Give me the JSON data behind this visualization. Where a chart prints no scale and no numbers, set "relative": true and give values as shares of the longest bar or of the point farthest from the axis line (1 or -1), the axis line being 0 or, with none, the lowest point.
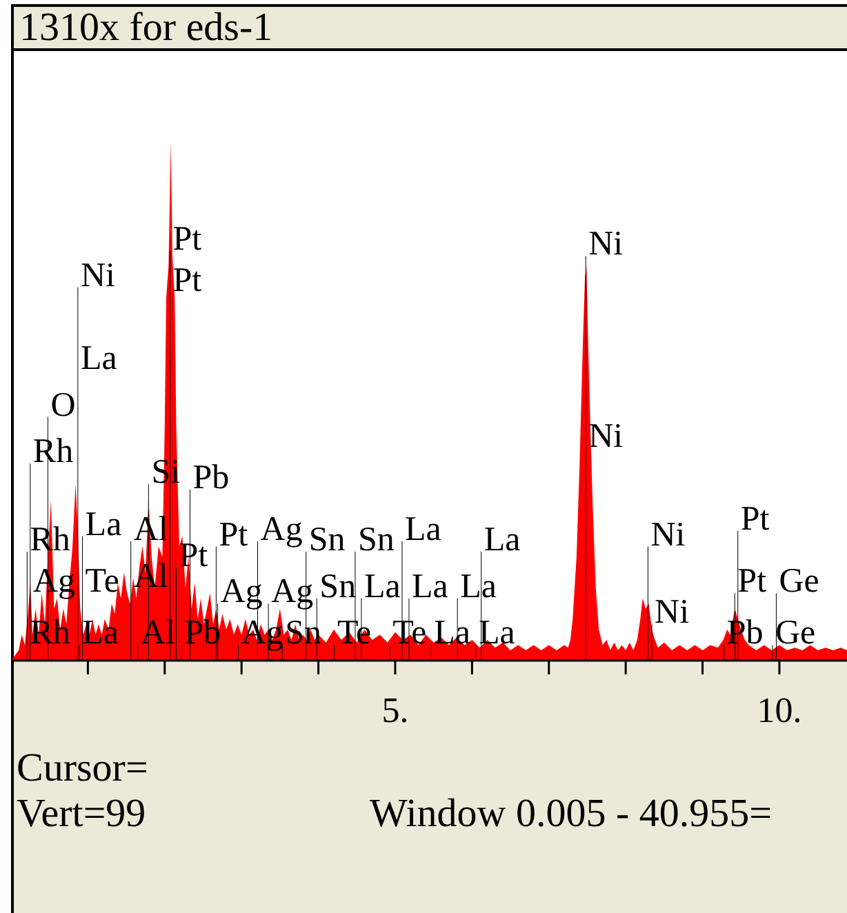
{
  "chart_data": {
    "type": "area",
    "title": "1310x for eds-1",
    "relative": true,
    "x": [
      0,
      0.05,
      0.1,
      0.14,
      0.18,
      0.22,
      0.25,
      0.28,
      0.32,
      0.36,
      0.4,
      0.44,
      0.48,
      0.52,
      0.56,
      0.6,
      0.64,
      0.68,
      0.72,
      0.76,
      0.8,
      0.84,
      0.87,
      0.9,
      0.94,
      0.98,
      1.02,
      1.06,
      1.1,
      1.14,
      1.18,
      1.22,
      1.27,
      1.31,
      1.35,
      1.39,
      1.43,
      1.47,
      1.51,
      1.55,
      1.59,
      1.63,
      1.67,
      1.71,
      1.75,
      1.79,
      1.83,
      1.87,
      1.92,
      1.97,
      2.0,
      2.02,
      2.05,
      2.08,
      2.1,
      2.13,
      2.15,
      2.19,
      2.23,
      2.27,
      2.31,
      2.35,
      2.39,
      2.43,
      2.47,
      2.51,
      2.55,
      2.59,
      2.63,
      2.67,
      2.71,
      2.75,
      2.8,
      2.85,
      2.9,
      2.95,
      3.0,
      3.05,
      3.1,
      3.15,
      3.2,
      3.25,
      3.3,
      3.35,
      3.4,
      3.45,
      3.5,
      3.55,
      3.6,
      3.65,
      3.7,
      3.75,
      3.8,
      3.85,
      3.9,
      3.95,
      4.0,
      4.1,
      4.2,
      4.3,
      4.4,
      4.5,
      4.6,
      4.7,
      4.8,
      4.9,
      5.0,
      5.1,
      5.2,
      5.3,
      5.4,
      5.5,
      5.6,
      5.7,
      5.8,
      5.9,
      6.0,
      6.1,
      6.2,
      6.3,
      6.4,
      6.5,
      6.6,
      6.7,
      6.8,
      6.9,
      7.0,
      7.1,
      7.2,
      7.25,
      7.28,
      7.31,
      7.36,
      7.4,
      7.44,
      7.47,
      7.49,
      7.51,
      7.54,
      7.57,
      7.61,
      7.65,
      7.7,
      7.75,
      7.8,
      7.85,
      7.9,
      7.95,
      8.0,
      8.05,
      8.1,
      8.15,
      8.19,
      8.22,
      8.26,
      8.3,
      8.34,
      8.38,
      8.42,
      8.5,
      8.6,
      8.7,
      8.8,
      8.9,
      9.0,
      9.1,
      9.2,
      9.27,
      9.32,
      9.36,
      9.42,
      9.46,
      9.5,
      9.55,
      9.6,
      9.7,
      9.8,
      9.9,
      10.0,
      10.1,
      10.2,
      10.3,
      10.4,
      10.5,
      10.6,
      10.7,
      10.8,
      10.88
    ],
    "xlim": [
      0,
      10.88
    ],
    "xticks": [
      {
        "value": 1,
        "label": null
      },
      {
        "value": 2,
        "label": null
      },
      {
        "value": 3,
        "label": null
      },
      {
        "value": 4,
        "label": null
      },
      {
        "value": 5,
        "label": "5."
      },
      {
        "value": 6,
        "label": null
      },
      {
        "value": 7,
        "label": null
      },
      {
        "value": 8,
        "label": null
      },
      {
        "value": 9,
        "label": null
      },
      {
        "value": 10,
        "label": "10."
      }
    ],
    "series": [
      {
        "color": "#ff0000",
        "values": [
          0,
          0.01,
          0.02,
          0.05,
          0.03,
          0.09,
          0.15,
          0.05,
          0.1,
          0.05,
          0.13,
          0.07,
          0.2,
          0.31,
          0.1,
          0.12,
          0.06,
          0.1,
          0.07,
          0.15,
          0.22,
          0.34,
          0.25,
          0.1,
          0.05,
          0.07,
          0.05,
          0.08,
          0.05,
          0.07,
          0.05,
          0.08,
          0.06,
          0.11,
          0.09,
          0.15,
          0.12,
          0.17,
          0.13,
          0.11,
          0.16,
          0.12,
          0.18,
          0.22,
          0.17,
          0.31,
          0.2,
          0.14,
          0.22,
          0.2,
          0.45,
          0.7,
          0.76,
          1.0,
          0.78,
          0.7,
          0.45,
          0.22,
          0.24,
          0.14,
          0.2,
          0.1,
          0.15,
          0.08,
          0.12,
          0.07,
          0.1,
          0.13,
          0.07,
          0.1,
          0.06,
          0.09,
          0.06,
          0.08,
          0.05,
          0.07,
          0.05,
          0.08,
          0.05,
          0.06,
          0.04,
          0.07,
          0.05,
          0.06,
          0.04,
          0.06,
          0.1,
          0.05,
          0.06,
          0.04,
          0.07,
          0.04,
          0.05,
          0.04,
          0.06,
          0.04,
          0.05,
          0.035,
          0.06,
          0.04,
          0.055,
          0.035,
          0.06,
          0.04,
          0.05,
          0.035,
          0.055,
          0.04,
          0.05,
          0.03,
          0.05,
          0.035,
          0.045,
          0.03,
          0.045,
          0.03,
          0.04,
          0.025,
          0.04,
          0.025,
          0.035,
          0.02,
          0.03,
          0.02,
          0.03,
          0.02,
          0.03,
          0.02,
          0.03,
          0.025,
          0.04,
          0.08,
          0.2,
          0.38,
          0.6,
          0.74,
          0.76,
          0.62,
          0.45,
          0.3,
          0.14,
          0.06,
          0.03,
          0.04,
          0.02,
          0.035,
          0.02,
          0.03,
          0.02,
          0.035,
          0.02,
          0.04,
          0.08,
          0.12,
          0.1,
          0.11,
          0.06,
          0.04,
          0.025,
          0.035,
          0.02,
          0.03,
          0.02,
          0.03,
          0.02,
          0.03,
          0.025,
          0.04,
          0.06,
          0.05,
          0.1,
          0.08,
          0.06,
          0.04,
          0.03,
          0.02,
          0.03,
          0.02,
          0.03,
          0.02,
          0.025,
          0.02,
          0.03,
          0.02,
          0.025,
          0.02,
          0.025,
          0.02
        ]
      },
      {
        "type": "bar",
        "color": "#000000",
        "x": [
          0.21,
          0.25,
          0.48,
          0.87,
          0.89,
          0.93,
          1.56,
          1.65,
          1.79,
          2.07,
          2.15,
          2.22,
          2.33,
          2.67,
          2.69,
          2.96,
          3.21,
          3.35,
          3.53,
          3.84,
          3.98,
          4.21,
          4.48,
          4.56,
          4.93,
          5.09,
          5.18,
          5.47,
          5.81,
          6.05,
          6.12,
          7.48,
          8.29,
          8.34,
          9.28,
          9.42,
          9.46,
          9.91,
          9.96
        ],
        "values": [
          0.21,
          0.38,
          0.47,
          0.72,
          0.03,
          0.24,
          0.23,
          0.03,
          0.34,
          0.79,
          0.18,
          0.03,
          0.33,
          0.22,
          0.11,
          0.03,
          0.23,
          0.11,
          0.03,
          0.21,
          0.12,
          0.03,
          0.21,
          0.12,
          0.03,
          0.23,
          0.12,
          0.03,
          0.12,
          0.03,
          0.21,
          0.78,
          0.22,
          0.07,
          0.03,
          0.13,
          0.25,
          0.03,
          0.13
        ]
      }
    ],
    "annotations": [
      {
        "text": "Pt",
        "x": 2.07,
        "y": 0.79
      },
      {
        "text": "Pt",
        "x": 2.07,
        "y": 0.71
      },
      {
        "text": "Ni",
        "x": 0.87,
        "y": 0.72
      },
      {
        "text": "La",
        "x": 0.87,
        "y": 0.56
      },
      {
        "text": "O",
        "x": 0.48,
        "y": 0.47
      },
      {
        "text": "Rh",
        "x": 0.25,
        "y": 0.38
      },
      {
        "text": "Si",
        "x": 1.79,
        "y": 0.34
      },
      {
        "text": "Pb",
        "x": 2.33,
        "y": 0.33
      },
      {
        "text": "La",
        "x": 0.93,
        "y": 0.24
      },
      {
        "text": "Al",
        "x": 1.56,
        "y": 0.23
      },
      {
        "text": "Rh",
        "x": 0.21,
        "y": 0.21
      },
      {
        "text": "Pt",
        "x": 2.15,
        "y": 0.18
      },
      {
        "text": "Pt",
        "x": 2.67,
        "y": 0.22
      },
      {
        "text": "Ag",
        "x": 3.21,
        "y": 0.23
      },
      {
        "text": "Sn",
        "x": 3.84,
        "y": 0.21
      },
      {
        "text": "Sn",
        "x": 4.48,
        "y": 0.21
      },
      {
        "text": "La",
        "x": 5.09,
        "y": 0.23
      },
      {
        "text": "La",
        "x": 6.12,
        "y": 0.21
      },
      {
        "text": "Ag",
        "x": 0.25,
        "y": 0.13
      },
      {
        "text": "Te",
        "x": 0.93,
        "y": 0.13
      },
      {
        "text": "Al",
        "x": 1.56,
        "y": 0.14
      },
      {
        "text": "Ag",
        "x": 2.69,
        "y": 0.11
      },
      {
        "text": "Ag",
        "x": 3.35,
        "y": 0.11
      },
      {
        "text": "Sn",
        "x": 3.98,
        "y": 0.12
      },
      {
        "text": "La",
        "x": 4.56,
        "y": 0.12
      },
      {
        "text": "La",
        "x": 5.18,
        "y": 0.12
      },
      {
        "text": "La",
        "x": 5.81,
        "y": 0.12
      },
      {
        "text": "Rh",
        "x": 0.21,
        "y": 0.03
      },
      {
        "text": "La",
        "x": 0.89,
        "y": 0.03
      },
      {
        "text": "Al",
        "x": 1.65,
        "y": 0.03
      },
      {
        "text": "Pb",
        "x": 2.22,
        "y": 0.03
      },
      {
        "text": "Ag",
        "x": 2.96,
        "y": 0.03
      },
      {
        "text": "Sn",
        "x": 3.53,
        "y": 0.03
      },
      {
        "text": "Te",
        "x": 4.21,
        "y": 0.03
      },
      {
        "text": "Te",
        "x": 4.93,
        "y": 0.03
      },
      {
        "text": "La",
        "x": 5.47,
        "y": 0.03
      },
      {
        "text": "La",
        "x": 6.05,
        "y": 0.03
      },
      {
        "text": "Ni",
        "x": 7.48,
        "y": 0.78
      },
      {
        "text": "Ni",
        "x": 7.48,
        "y": 0.41
      },
      {
        "text": "Ni",
        "x": 8.29,
        "y": 0.22
      },
      {
        "text": "Ni",
        "x": 8.34,
        "y": 0.07
      },
      {
        "text": "Pt",
        "x": 9.46,
        "y": 0.25
      },
      {
        "text": "Pt",
        "x": 9.42,
        "y": 0.13
      },
      {
        "text": "Ge",
        "x": 9.96,
        "y": 0.13
      },
      {
        "text": "Pb",
        "x": 9.28,
        "y": 0.03
      },
      {
        "text": "Ge",
        "x": 9.91,
        "y": 0.03
      },
      "Cursor=",
      "Vert=99",
      "Window 0.005 - 40.955="
    ]
  }
}
